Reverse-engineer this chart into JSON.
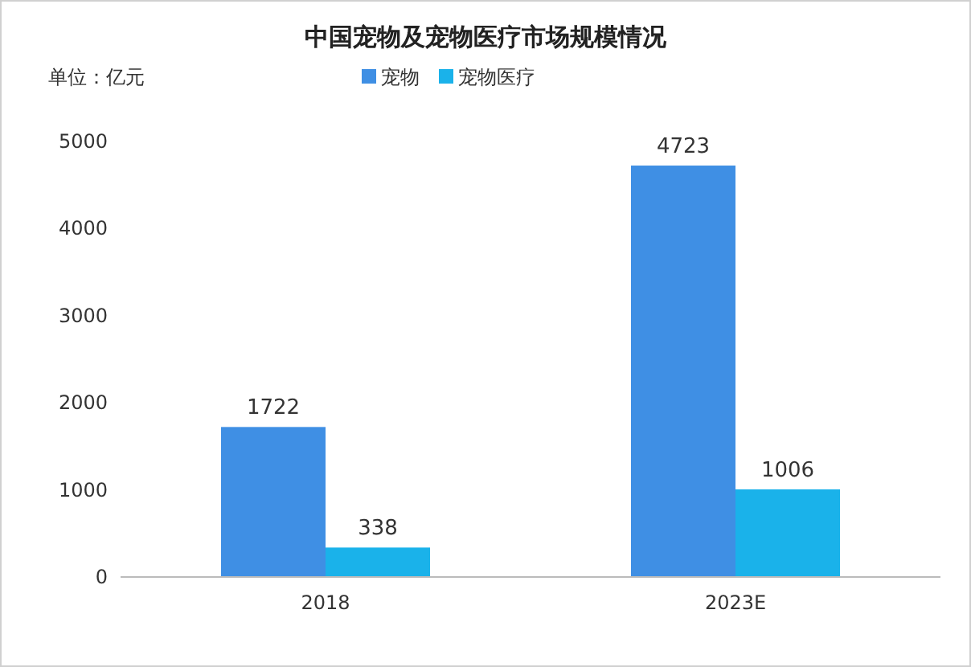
{
  "chart_data": {
    "type": "bar",
    "title": "中国宠物及宠物医疗市场规模情况",
    "annotations": [
      "单位：亿元"
    ],
    "categories": [
      "2018",
      "2023E"
    ],
    "series": [
      {
        "name": "宠物",
        "color": "#3f8fe4",
        "values": [
          1722,
          4723
        ]
      },
      {
        "name": "宠物医疗",
        "color": "#1ab2ea",
        "values": [
          338,
          1006
        ]
      }
    ],
    "ylim": [
      0,
      5000
    ],
    "yticks": [
      0,
      1000,
      2000,
      3000,
      4000,
      5000
    ],
    "legend": "top",
    "data_labels": true
  }
}
